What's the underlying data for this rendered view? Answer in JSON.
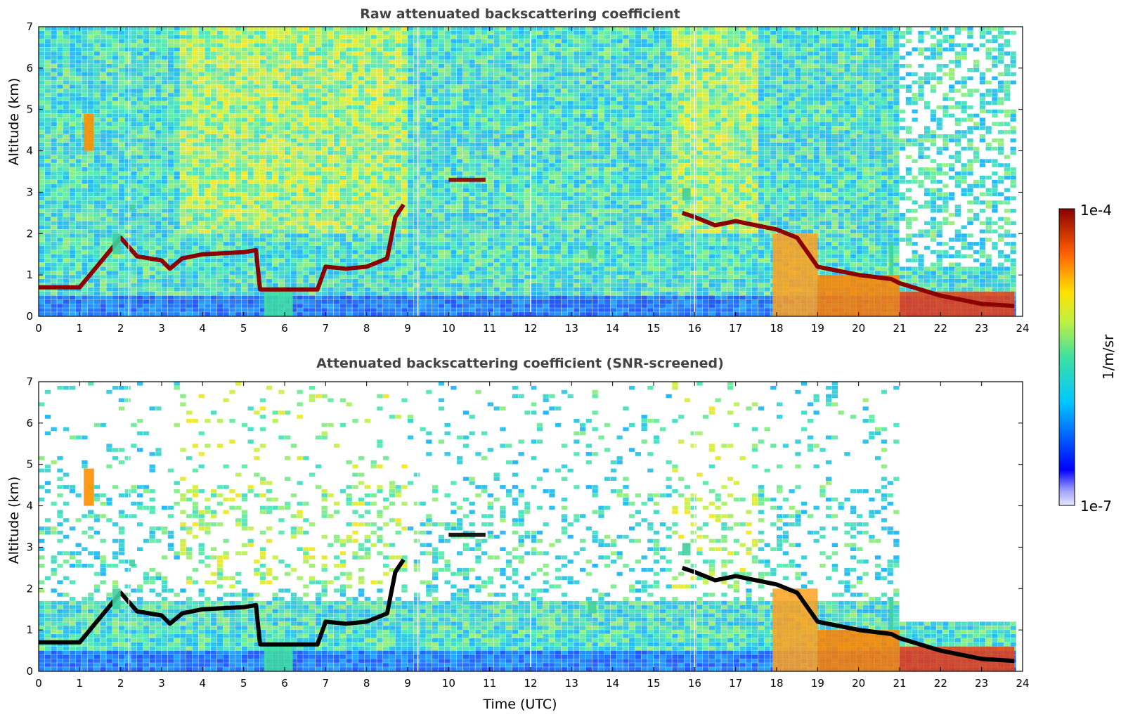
{
  "chart_data": [
    {
      "type": "heatmap",
      "title": "Raw attenuated backscattering coefficient",
      "xlabel": "",
      "ylabel": "Altitude (km)",
      "xlim": [
        0,
        24
      ],
      "ylim": [
        0,
        7
      ],
      "x_ticks": [
        "0",
        "1",
        "2",
        "3",
        "4",
        "5",
        "6",
        "7",
        "8",
        "9",
        "10",
        "11",
        "12",
        "13",
        "14",
        "15",
        "16",
        "17",
        "18",
        "19",
        "20",
        "21",
        "22",
        "23",
        "24"
      ],
      "y_ticks": [
        "0",
        "1",
        "2",
        "3",
        "4",
        "5",
        "6",
        "7"
      ],
      "screened": false,
      "cloud_layer": [
        [
          0,
          0.7
        ],
        [
          1,
          0.7
        ],
        [
          2,
          1.9
        ],
        [
          2.4,
          1.45
        ],
        [
          3,
          1.35
        ],
        [
          3.2,
          1.15
        ],
        [
          3.5,
          1.4
        ],
        [
          4,
          1.5
        ],
        [
          5,
          1.55
        ],
        [
          5.3,
          1.6
        ],
        [
          5.4,
          0.65
        ],
        [
          6,
          0.65
        ],
        [
          6.8,
          0.65
        ],
        [
          7,
          1.2
        ],
        [
          7.5,
          1.15
        ],
        [
          8,
          1.2
        ],
        [
          8.5,
          1.4
        ],
        [
          8.7,
          2.4
        ],
        [
          8.9,
          2.7
        ]
      ],
      "cloud_layer_2": [
        [
          15.7,
          2.5
        ],
        [
          16,
          2.4
        ],
        [
          16.5,
          2.2
        ],
        [
          17,
          2.3
        ],
        [
          17.5,
          2.2
        ],
        [
          18,
          2.1
        ],
        [
          18.5,
          1.9
        ],
        [
          19,
          1.2
        ],
        [
          20,
          1.0
        ],
        [
          20.8,
          0.9
        ],
        [
          21,
          0.8
        ],
        [
          22,
          0.5
        ],
        [
          23,
          0.3
        ],
        [
          23.8,
          0.25
        ]
      ],
      "elevated_patches": [
        {
          "x": [
            1.1,
            1.35
          ],
          "y": [
            4.0,
            4.9
          ]
        },
        {
          "x": [
            1.8,
            2.0
          ],
          "y": [
            1.5,
            2.0
          ]
        },
        {
          "x": [
            2.2,
            2.35
          ],
          "y": [
            2.55,
            2.7
          ]
        },
        {
          "x": [
            10.0,
            10.9
          ],
          "y": [
            3.25,
            3.35
          ]
        },
        {
          "x": [
            13.4,
            13.6
          ],
          "y": [
            1.4,
            1.7
          ]
        },
        {
          "x": [
            15.7,
            15.9
          ],
          "y": [
            2.8,
            3.1
          ]
        },
        {
          "x": [
            20.75,
            20.85
          ],
          "y": [
            1.0,
            1.8
          ]
        }
      ],
      "precip_shafts": [
        [
          5.5,
          6.2
        ],
        [
          17.9,
          19.0
        ],
        [
          19.0,
          21.0
        ],
        [
          21.0,
          23.8
        ]
      ]
    },
    {
      "type": "heatmap",
      "title": "Attenuated backscattering coefficient (SNR-screened)",
      "xlabel": "Time (UTC)",
      "ylabel": "Altitude (km)",
      "xlim": [
        0,
        24
      ],
      "ylim": [
        0,
        7
      ],
      "x_ticks": [
        "0",
        "1",
        "2",
        "3",
        "4",
        "5",
        "6",
        "7",
        "8",
        "9",
        "10",
        "11",
        "12",
        "13",
        "14",
        "15",
        "16",
        "17",
        "18",
        "19",
        "20",
        "21",
        "22",
        "23",
        "24"
      ],
      "y_ticks": [
        "0",
        "1",
        "2",
        "3",
        "4",
        "5",
        "6",
        "7"
      ],
      "screened": true,
      "cloud_layer": [
        [
          0,
          0.7
        ],
        [
          1,
          0.7
        ],
        [
          2,
          1.9
        ],
        [
          2.4,
          1.45
        ],
        [
          3,
          1.35
        ],
        [
          3.2,
          1.15
        ],
        [
          3.5,
          1.4
        ],
        [
          4,
          1.5
        ],
        [
          5,
          1.55
        ],
        [
          5.3,
          1.6
        ],
        [
          5.4,
          0.65
        ],
        [
          6,
          0.65
        ],
        [
          6.8,
          0.65
        ],
        [
          7,
          1.2
        ],
        [
          7.5,
          1.15
        ],
        [
          8,
          1.2
        ],
        [
          8.5,
          1.4
        ],
        [
          8.7,
          2.4
        ],
        [
          8.9,
          2.7
        ]
      ],
      "cloud_layer_2": [
        [
          15.7,
          2.5
        ],
        [
          16,
          2.4
        ],
        [
          16.5,
          2.2
        ],
        [
          17,
          2.3
        ],
        [
          17.5,
          2.2
        ],
        [
          18,
          2.1
        ],
        [
          18.5,
          1.9
        ],
        [
          19,
          1.2
        ],
        [
          20,
          1.0
        ],
        [
          20.8,
          0.9
        ],
        [
          21,
          0.8
        ],
        [
          22,
          0.5
        ],
        [
          23,
          0.3
        ],
        [
          23.8,
          0.25
        ]
      ],
      "elevated_patches": [
        {
          "x": [
            1.1,
            1.35
          ],
          "y": [
            4.0,
            4.9
          ]
        },
        {
          "x": [
            1.8,
            2.0
          ],
          "y": [
            1.5,
            2.0
          ]
        },
        {
          "x": [
            2.2,
            2.35
          ],
          "y": [
            2.55,
            2.7
          ]
        },
        {
          "x": [
            10.0,
            10.9
          ],
          "y": [
            3.25,
            3.35
          ]
        },
        {
          "x": [
            13.4,
            13.6
          ],
          "y": [
            1.4,
            1.7
          ]
        },
        {
          "x": [
            15.7,
            15.9
          ],
          "y": [
            2.8,
            3.1
          ]
        },
        {
          "x": [
            20.75,
            20.85
          ],
          "y": [
            1.0,
            1.8
          ]
        }
      ],
      "precip_shafts": [
        [
          5.5,
          6.2
        ],
        [
          17.9,
          19.0
        ],
        [
          19.0,
          21.0
        ],
        [
          21.0,
          23.8
        ]
      ]
    }
  ],
  "colorbar": {
    "label": "1/m/sr",
    "max_label": "1e-4",
    "min_label": "1e-7",
    "scale": "log",
    "range": [
      1e-07,
      0.0001
    ],
    "colormap": "jet"
  },
  "colors": {
    "cloud_raw": "#8b0000",
    "cloud_screened": "#000000",
    "title": "#444444"
  }
}
